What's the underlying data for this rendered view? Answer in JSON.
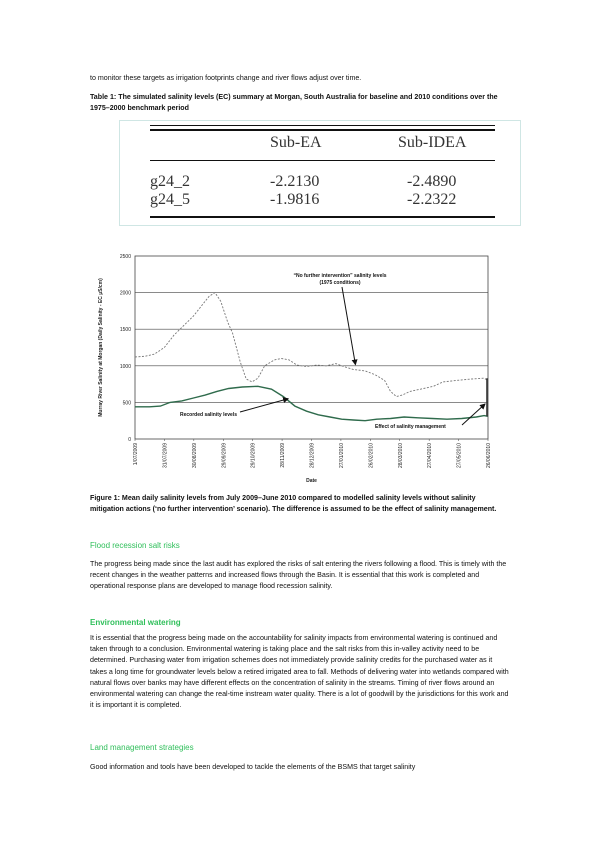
{
  "intro_text": "to monitor these targets as irrigation footprints change and river flows adjust over time.",
  "table_caption": "Table 1: The simulated salinity levels (EC) summary at Morgan, South Australia for baseline and 2010 conditions over the 1975–2000 benchmark period",
  "table": {
    "headers": [
      "",
      "Sub-EA",
      "Sub-IDEA"
    ],
    "rows": [
      [
        "g24_2",
        "-2.2130",
        "-2.4890"
      ],
      [
        "g24_5",
        "-1.9816",
        "-2.2322"
      ]
    ]
  },
  "chart_data": {
    "type": "line",
    "xlabel": "Date",
    "ylabel": "Murray River Salinity at Morgan (Daily Salinity - EC µS/cm)",
    "ylim": [
      0,
      2500
    ],
    "yticks": [
      0,
      500,
      1000,
      1500,
      2000,
      2500
    ],
    "xticks": [
      "1/07/2009",
      "31/07/2009",
      "30/08/2009",
      "29/09/2009",
      "29/10/2009",
      "28/11/2009",
      "28/12/2009",
      "27/01/2010",
      "26/02/2010",
      "28/03/2010",
      "27/04/2010",
      "27/05/2010",
      "26/06/2010"
    ],
    "grid": true,
    "series": [
      {
        "name": "No further intervention",
        "style": "dashed",
        "color": "#777777",
        "values": [
          [
            0,
            1120
          ],
          [
            10,
            1130
          ],
          [
            20,
            1160
          ],
          [
            30,
            1250
          ],
          [
            40,
            1420
          ],
          [
            50,
            1550
          ],
          [
            60,
            1680
          ],
          [
            70,
            1850
          ],
          [
            76,
            1950
          ],
          [
            82,
            2000
          ],
          [
            88,
            1880
          ],
          [
            95,
            1600
          ],
          [
            100,
            1450
          ],
          [
            108,
            1050
          ],
          [
            114,
            820
          ],
          [
            120,
            780
          ],
          [
            126,
            830
          ],
          [
            133,
            1000
          ],
          [
            143,
            1080
          ],
          [
            150,
            1100
          ],
          [
            158,
            1080
          ],
          [
            166,
            1010
          ],
          [
            176,
            990
          ],
          [
            186,
            1010
          ],
          [
            196,
            1000
          ],
          [
            206,
            1030
          ],
          [
            214,
            990
          ],
          [
            224,
            950
          ],
          [
            236,
            930
          ],
          [
            246,
            880
          ],
          [
            256,
            800
          ],
          [
            262,
            650
          ],
          [
            268,
            580
          ],
          [
            274,
            600
          ],
          [
            282,
            650
          ],
          [
            296,
            690
          ],
          [
            306,
            720
          ],
          [
            316,
            780
          ],
          [
            330,
            800
          ],
          [
            345,
            820
          ],
          [
            358,
            830
          ],
          [
            362,
            800
          ]
        ]
      },
      {
        "name": "Recorded salinity levels",
        "style": "solid",
        "color": "#2f6b4c",
        "values": [
          [
            0,
            440
          ],
          [
            15,
            440
          ],
          [
            26,
            450
          ],
          [
            36,
            500
          ],
          [
            48,
            520
          ],
          [
            60,
            560
          ],
          [
            72,
            600
          ],
          [
            84,
            650
          ],
          [
            96,
            690
          ],
          [
            110,
            710
          ],
          [
            126,
            720
          ],
          [
            140,
            680
          ],
          [
            152,
            580
          ],
          [
            164,
            450
          ],
          [
            176,
            380
          ],
          [
            188,
            330
          ],
          [
            200,
            300
          ],
          [
            212,
            270
          ],
          [
            224,
            260
          ],
          [
            236,
            250
          ],
          [
            248,
            270
          ],
          [
            262,
            280
          ],
          [
            276,
            300
          ],
          [
            290,
            290
          ],
          [
            305,
            280
          ],
          [
            320,
            270
          ],
          [
            335,
            280
          ],
          [
            350,
            300
          ],
          [
            358,
            320
          ],
          [
            362,
            310
          ]
        ]
      }
    ],
    "annotations": [
      {
        "text": "“No further intervention” salinity levels",
        "text2": "(1975 conditions)",
        "target": [
          224,
          990
        ]
      },
      {
        "text": "Recorded salinity levels",
        "target": [
          157,
          550
        ]
      },
      {
        "text": "Effect of salinity management",
        "target": [
          362,
          560
        ]
      }
    ]
  },
  "figure_caption": "Figure 1: Mean daily salinity levels from July 2009–June 2010 compared to modelled salinity levels without salinity mitigation actions (‘no further intervention’ scenario). The difference is assumed to be the effect of salinity management.",
  "sections": [
    {
      "heading": "Flood recession salt risks",
      "body": "The progress being made since the last audit has explored the risks of salt entering the rivers following a flood. This is timely with the recent changes in the weather patterns and increased flows through the Basin.  It is essential that this work is completed and operational response plans are developed to manage flood recession salinity."
    },
    {
      "heading": "Environmental watering",
      "body": "It is essential that the progress being made on the accountability for salinity impacts from environmental watering is continued and taken through to a conclusion. Environmental watering is taking place and the salt risks from this in-valley activity need to be determined. Purchasing water from irrigation schemes does not immediately provide salinity credits for the purchased water as it takes a long time for groundwater levels below a retired irrigated area to fall. Methods of delivering water into wetlands compared with natural flows over banks may have different effects on the concentration of salinity in the streams. Timing of river flows around an environmental watering can change the real-time instream water quality. There is a lot of goodwill by the jurisdictions for this work and it is important it is completed."
    },
    {
      "heading": "Land management strategies",
      "body": "Good information and tools have been developed to tackle the elements of the BSMS that target salinity"
    }
  ],
  "colors": {
    "heading": "#2fbf5a",
    "recorded_series": "#2f6b4c",
    "intervention_series": "#777777"
  }
}
